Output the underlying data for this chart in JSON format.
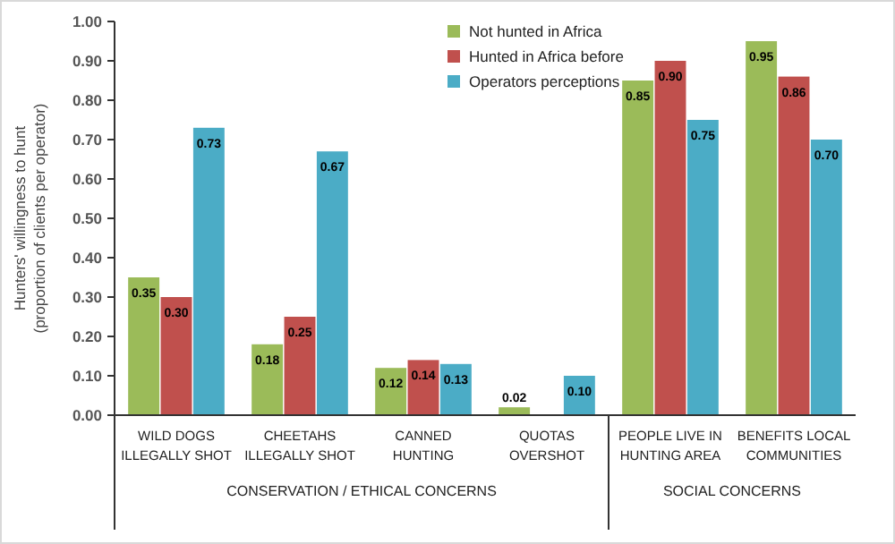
{
  "chart_data": {
    "type": "bar",
    "ylabel": "Hunters' willingness to hunt\n(proportion of clients per operator)",
    "categories": [
      "WILD DOGS ILLEGALLY SHOT",
      "CHEETAHS ILLEGALLY SHOT",
      "CANNED HUNTING",
      "QUOTAS OVERSHOT",
      "PEOPLE LIVE IN HUNTING AREA",
      "BENEFITS LOCAL COMMUNITIES"
    ],
    "series": [
      {
        "name": "Not hunted in Africa",
        "color": "#9bbb59",
        "values": [
          0.35,
          0.18,
          0.12,
          0.02,
          0.85,
          0.95
        ],
        "value_labels": [
          "0.35",
          "0.18",
          "0.12",
          "0.02",
          "0.85",
          "0.95"
        ]
      },
      {
        "name": "Hunted in Africa before",
        "color": "#c0504d",
        "values": [
          0.3,
          0.25,
          0.14,
          null,
          0.9,
          0.86
        ],
        "value_labels": [
          "0.30",
          "0.25",
          "0.14",
          null,
          "0.90",
          "0.86"
        ]
      },
      {
        "name": "Operators perceptions",
        "color": "#4bacc6",
        "values": [
          0.73,
          0.67,
          0.13,
          0.1,
          0.75,
          0.7
        ],
        "value_labels": [
          "0.73",
          "0.67",
          "0.13",
          "0.10",
          "0.75",
          "0.70"
        ]
      }
    ],
    "ylim": [
      0,
      1
    ],
    "yticks": [
      {
        "value": 0,
        "label": "0.00"
      },
      {
        "value": 0.1,
        "label": "0.10"
      },
      {
        "value": 0.2,
        "label": "0.20"
      },
      {
        "value": 0.3,
        "label": "0.30"
      },
      {
        "value": 0.4,
        "label": "0.40"
      },
      {
        "value": 0.5,
        "label": "0.50"
      },
      {
        "value": 0.6,
        "label": "0.60"
      },
      {
        "value": 0.7,
        "label": "0.70"
      },
      {
        "value": 0.8,
        "label": "0.80"
      },
      {
        "value": 0.9,
        "label": "0.90"
      },
      {
        "value": 1,
        "label": "1.00"
      }
    ],
    "legend": "top",
    "grid": false,
    "annotations": [
      "CONSERVATION / ETHICAL CONCERNS",
      "SOCIAL CONCERNS"
    ]
  }
}
